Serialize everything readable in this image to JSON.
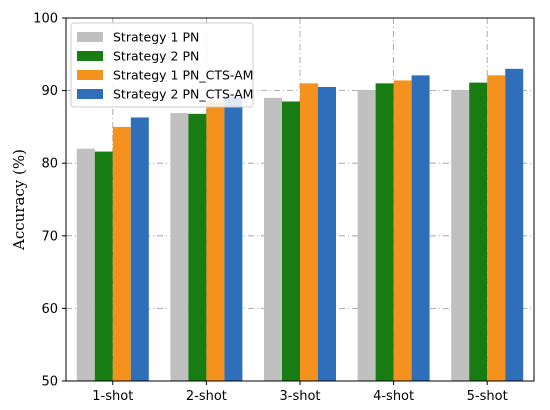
{
  "chart_data": {
    "type": "bar",
    "title": "",
    "xlabel": "",
    "ylabel": "Accuracy (%)",
    "ylim": [
      50,
      100
    ],
    "yticks": [
      50,
      60,
      70,
      80,
      90,
      100
    ],
    "categories": [
      "1-shot",
      "2-shot",
      "3-shot",
      "4-shot",
      "5-shot"
    ],
    "series": [
      {
        "name": "Strategy 1 PN",
        "color": "#c0c0c0",
        "values": [
          82.0,
          86.9,
          89.0,
          90.1,
          90.1
        ]
      },
      {
        "name": "Strategy 2 PN",
        "color": "#177c11",
        "values": [
          81.6,
          86.8,
          88.5,
          91.0,
          91.1
        ]
      },
      {
        "name": "Strategy 1 PN_CTS-AM",
        "color": "#f5921e",
        "values": [
          85.0,
          88.4,
          91.0,
          91.4,
          92.1
        ]
      },
      {
        "name": "Strategy 2 PN_CTS-AM",
        "color": "#2f6fba",
        "values": [
          86.3,
          89.1,
          90.5,
          92.1,
          93.0
        ]
      }
    ],
    "grid": true,
    "legend_position": "top-left"
  }
}
